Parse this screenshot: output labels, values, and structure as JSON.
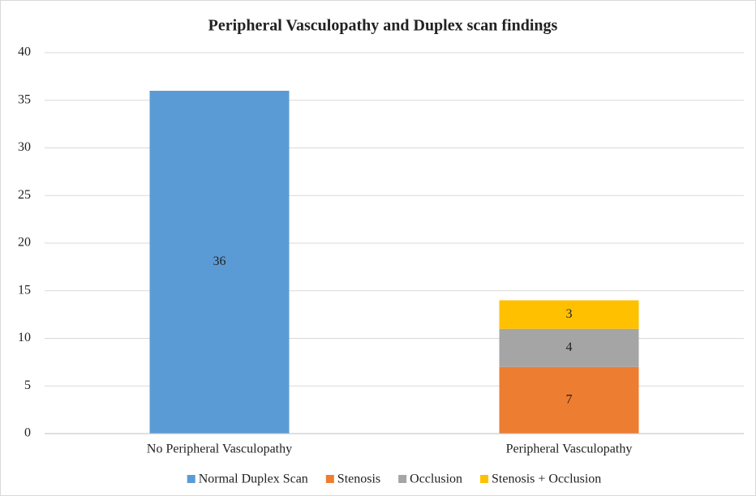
{
  "chart_data": {
    "type": "stacked_bar",
    "title": "Peripheral Vasculopathy and Duplex scan findings",
    "categories": [
      "No Peripheral Vasculopathy",
      "Peripheral Vasculopathy"
    ],
    "series": [
      {
        "name": "Normal Duplex Scan",
        "color": "#5b9bd5",
        "values": [
          36,
          null
        ]
      },
      {
        "name": "Stenosis",
        "color": "#ed7d31",
        "values": [
          null,
          7
        ]
      },
      {
        "name": "Occlusion",
        "color": "#a5a5a5",
        "values": [
          null,
          4
        ]
      },
      {
        "name": "Stenosis + Occlusion",
        "color": "#ffc000",
        "values": [
          null,
          3
        ]
      }
    ],
    "ylim": [
      0,
      40
    ],
    "yticks": [
      0,
      5,
      10,
      15,
      20,
      25,
      30,
      35,
      40
    ],
    "grid": true,
    "legend": "bottom"
  }
}
